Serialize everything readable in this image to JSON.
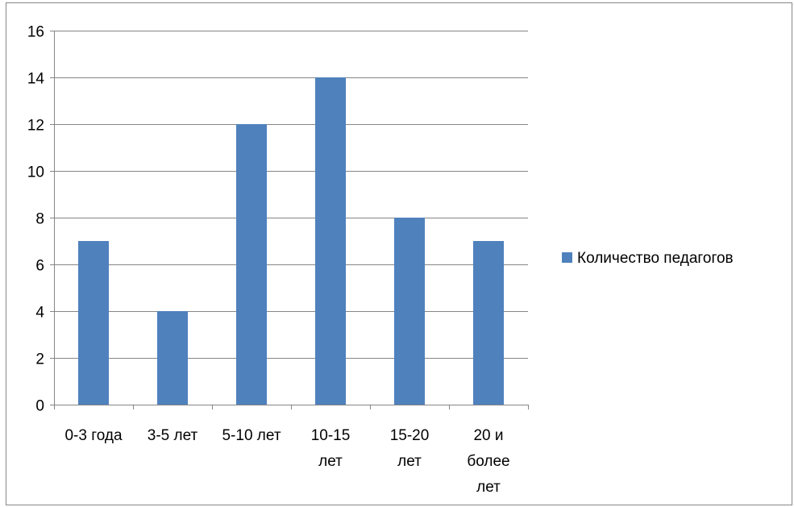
{
  "chart_data": {
    "type": "bar",
    "title": "",
    "xlabel": "",
    "ylabel": "",
    "categories": [
      "0-3 года",
      "3-5 лет",
      "5-10 лет",
      "10-15 лет",
      "15-20 лет",
      "20 и более лет"
    ],
    "category_lines": [
      [
        "0-3 года"
      ],
      [
        "3-5 лет"
      ],
      [
        "5-10 лет"
      ],
      [
        "10-15",
        "лет"
      ],
      [
        "15-20",
        "лет"
      ],
      [
        "20 и",
        "более",
        "лет"
      ]
    ],
    "series": [
      {
        "name": "Количество педагогов",
        "values": [
          7,
          4,
          12,
          14,
          8,
          7
        ],
        "color": "#4f81bd"
      }
    ],
    "ylim": [
      0,
      16
    ],
    "y_ticks": [
      0,
      2,
      4,
      6,
      8,
      10,
      12,
      14,
      16
    ],
    "grid": true,
    "legend": "right"
  }
}
